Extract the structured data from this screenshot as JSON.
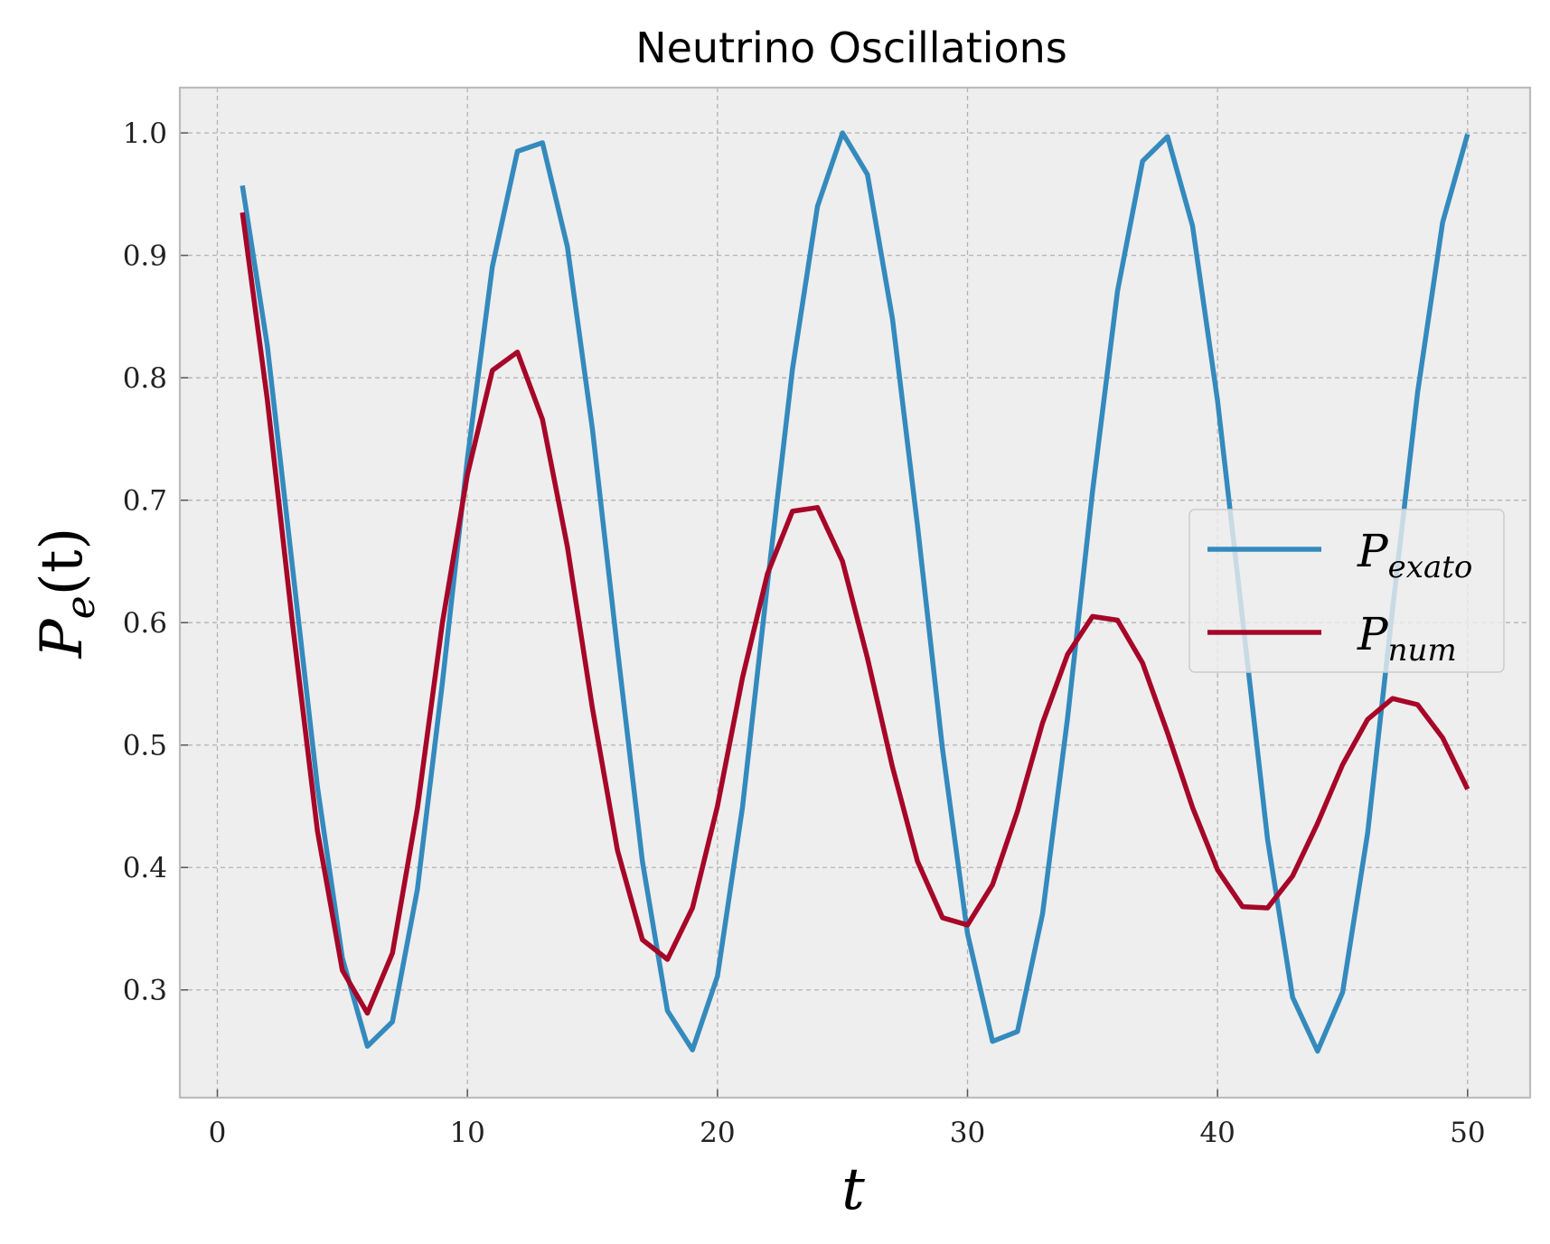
{
  "chart_data": {
    "type": "line",
    "title": "Neutrino Oscillations",
    "xlabel": "t",
    "ylabel": "P_e(t)",
    "xlim": [
      -1.5,
      52.5
    ],
    "ylim": [
      0.212,
      1.037
    ],
    "xticks": [
      0,
      10,
      20,
      30,
      40,
      50
    ],
    "yticks": [
      0.3,
      0.4,
      0.5,
      0.6,
      0.7,
      0.8,
      0.9,
      1.0
    ],
    "x_tick_labels": [
      "0",
      "10",
      "20",
      "30",
      "40",
      "50"
    ],
    "y_tick_labels": [
      "0.3",
      "0.4",
      "0.5",
      "0.6",
      "0.7",
      "0.8",
      "0.9",
      "1.0"
    ],
    "grid": true,
    "legend_position": "center-right",
    "x": [
      1,
      2,
      3,
      4,
      5,
      6,
      7,
      8,
      9,
      10,
      11,
      12,
      13,
      14,
      15,
      16,
      17,
      18,
      19,
      20,
      21,
      22,
      23,
      24,
      25,
      26,
      27,
      28,
      29,
      30,
      31,
      32,
      33,
      34,
      35,
      36,
      37,
      38,
      39,
      40,
      41,
      42,
      43,
      44,
      45,
      46,
      47,
      48,
      49,
      50
    ],
    "series": [
      {
        "name": "P_exato",
        "label_base": "P",
        "label_sub": "exato",
        "color": "#348ABD",
        "values": [
          0.957,
          0.826,
          0.646,
          0.466,
          0.326,
          0.254,
          0.274,
          0.382,
          0.551,
          0.734,
          0.891,
          0.985,
          0.992,
          0.907,
          0.758,
          0.578,
          0.405,
          0.283,
          0.251,
          0.311,
          0.449,
          0.632,
          0.807,
          0.94,
          1.0,
          0.966,
          0.848,
          0.679,
          0.497,
          0.346,
          0.258,
          0.266,
          0.362,
          0.522,
          0.707,
          0.871,
          0.977,
          0.997,
          0.924,
          0.781,
          0.603,
          0.423,
          0.294,
          0.25,
          0.298,
          0.428,
          0.611,
          0.788,
          0.927,
          0.999
        ]
      },
      {
        "name": "P_num",
        "label_base": "P",
        "label_sub": "num",
        "color": "#A60628",
        "values": [
          0.935,
          0.782,
          0.6,
          0.43,
          0.316,
          0.281,
          0.33,
          0.448,
          0.6,
          0.721,
          0.806,
          0.821,
          0.766,
          0.662,
          0.53,
          0.414,
          0.341,
          0.325,
          0.367,
          0.45,
          0.555,
          0.64,
          0.691,
          0.694,
          0.65,
          0.571,
          0.482,
          0.405,
          0.359,
          0.353,
          0.386,
          0.446,
          0.518,
          0.574,
          0.605,
          0.602,
          0.567,
          0.51,
          0.449,
          0.398,
          0.368,
          0.367,
          0.393,
          0.436,
          0.484,
          0.521,
          0.538,
          0.533,
          0.506,
          0.464
        ]
      }
    ]
  }
}
